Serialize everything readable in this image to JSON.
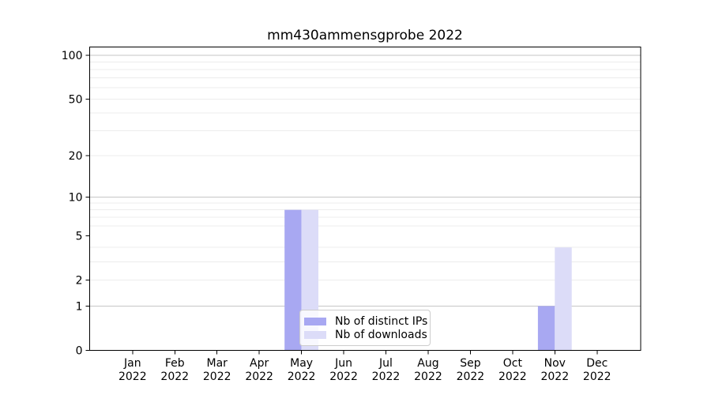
{
  "title": "mm430ammensgprobe 2022",
  "chart_data": {
    "type": "bar",
    "title": "mm430ammensgprobe 2022",
    "categories": [
      "Jan 2022",
      "Feb 2022",
      "Mar 2022",
      "Apr 2022",
      "May 2022",
      "Jun 2022",
      "Jul 2022",
      "Aug 2022",
      "Sep 2022",
      "Oct 2022",
      "Nov 2022",
      "Dec 2022"
    ],
    "series": [
      {
        "name": "Nb of distinct IPs",
        "color": "#a8a8f2",
        "values": [
          0,
          0,
          0,
          0,
          8,
          0,
          0,
          0,
          0,
          0,
          1,
          0
        ]
      },
      {
        "name": "Nb of downloads",
        "color": "#dcdcf8",
        "values": [
          0,
          0,
          0,
          0,
          8,
          0,
          0,
          0,
          0,
          0,
          4,
          0
        ]
      }
    ],
    "xlabel": "",
    "ylabel": "",
    "y_ticks": [
      0,
      1,
      2,
      5,
      10,
      20,
      50,
      100
    ],
    "y_major_gridlines": [
      1,
      10,
      100
    ],
    "y_minor_gridlines": [
      2,
      3,
      4,
      6,
      7,
      8,
      9,
      20,
      30,
      40,
      50,
      60,
      70,
      80,
      90
    ],
    "scale": "log10(value+1)",
    "ylim": [
      0,
      110
    ],
    "grid": true,
    "legend_position": "lower center"
  },
  "colors": {
    "background": "#ffffff",
    "axis": "#000000",
    "text": "#000000",
    "grid_minor": "#ececec",
    "grid_major": "#c6c6c6",
    "legend_border": "#cccccc"
  }
}
